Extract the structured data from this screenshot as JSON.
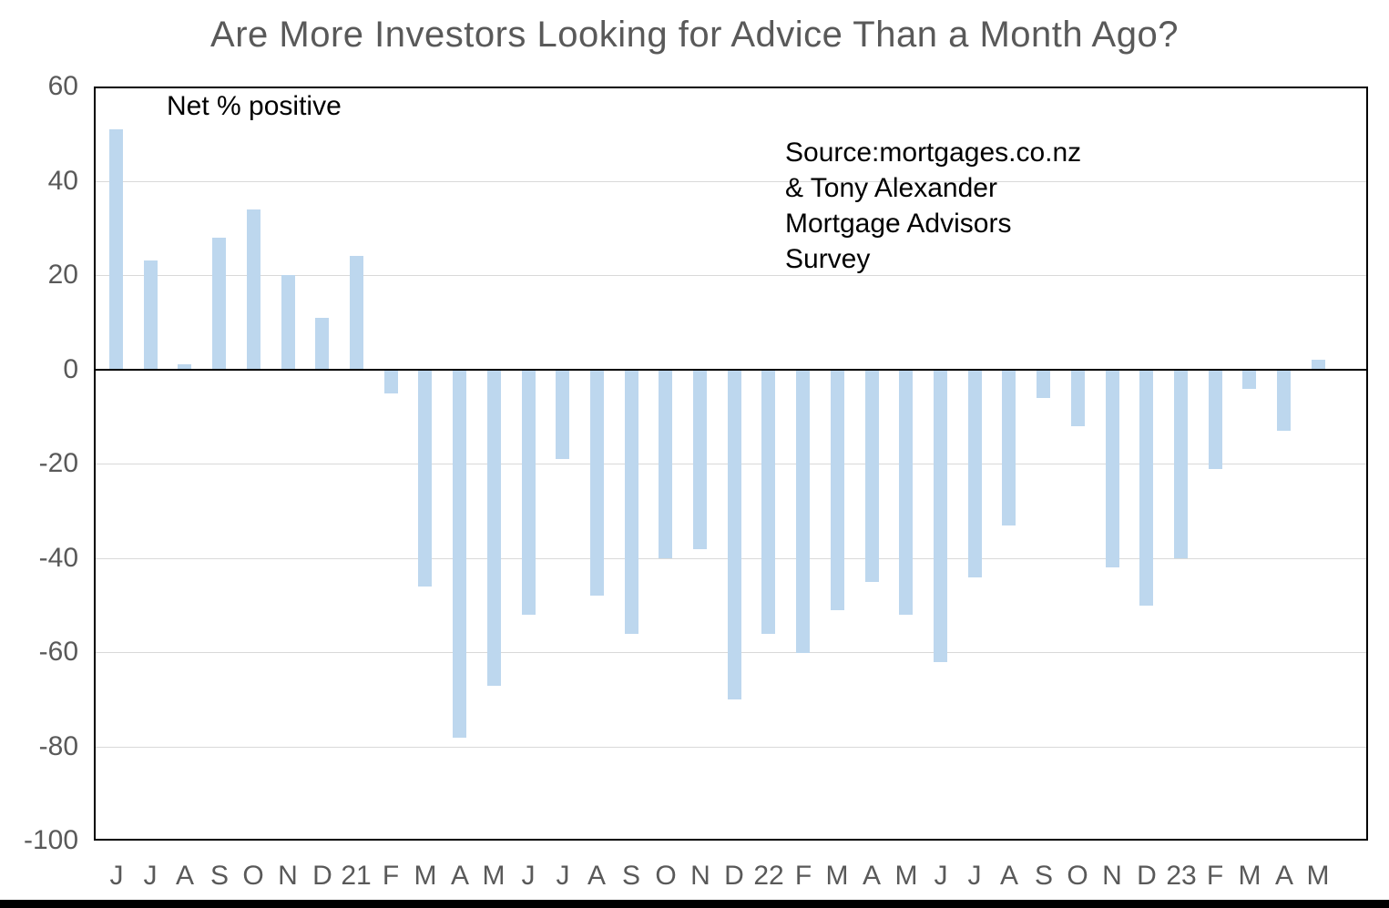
{
  "chart_data": {
    "type": "bar",
    "title": "Are More Investors Looking for Advice Than a Month Ago?",
    "annotation": "Net % positive",
    "source_lines": [
      "Source:mortgages.co.nz",
      "& Tony Alexander",
      "Mortgage Advisors",
      "Survey"
    ],
    "categories": [
      "J",
      "J",
      "A",
      "S",
      "O",
      "N",
      "D",
      "21",
      "F",
      "M",
      "A",
      "M",
      "J",
      "J",
      "A",
      "S",
      "O",
      "N",
      "D",
      "22",
      "F",
      "M",
      "A",
      "M",
      "J",
      "J",
      "A",
      "S",
      "O",
      "N",
      "D",
      "23",
      "F",
      "M",
      "A",
      "M"
    ],
    "values": [
      51,
      23,
      1,
      28,
      34,
      20,
      11,
      24,
      -5,
      -46,
      -78,
      -67,
      -52,
      -19,
      -48,
      -56,
      -40,
      -38,
      -70,
      -56,
      -60,
      -51,
      -45,
      -52,
      -62,
      -44,
      -33,
      -6,
      -12,
      -42,
      -50,
      -40,
      -21,
      -4,
      -13,
      2
    ],
    "xlabel": "",
    "ylabel": "",
    "ylim": [
      -100,
      60
    ],
    "yticks": [
      60,
      40,
      20,
      0,
      -20,
      -40,
      -60,
      -80,
      -100
    ],
    "gridline_values": [
      40,
      20,
      -20,
      -40,
      -60,
      -80
    ],
    "grid": "horizontal",
    "legend_position": "none",
    "colors": {
      "bar_fill": "#BDD7EE",
      "gridline": "#D9D9D9",
      "axis_text": "#595959",
      "title_text": "#595959",
      "annotation_text": "#000000",
      "plot_border": "#000000",
      "zero_line": "#000000",
      "background": "#FFFFFF",
      "bottom_strip": "#000000"
    }
  }
}
